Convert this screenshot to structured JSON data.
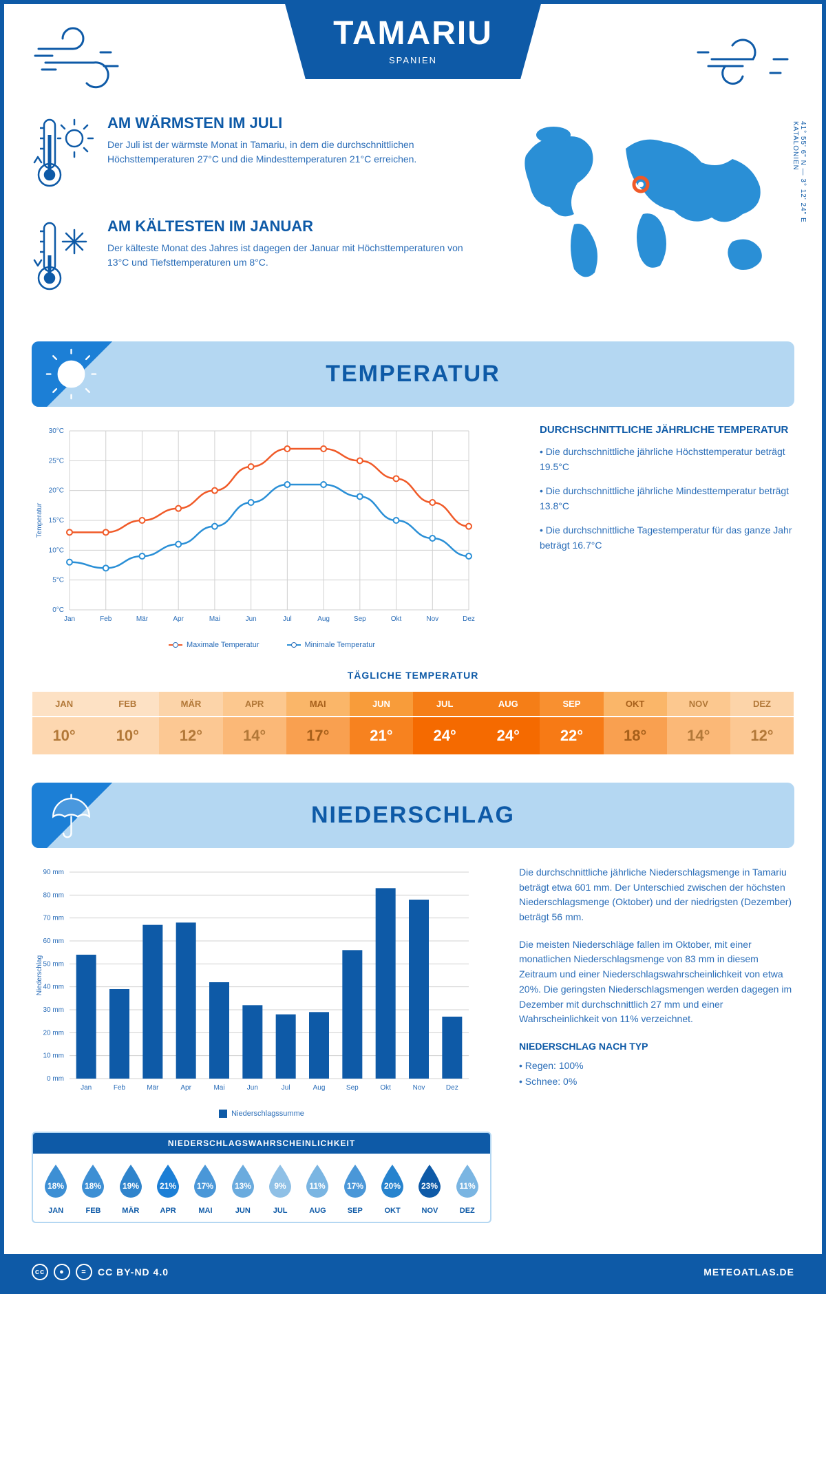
{
  "colors": {
    "primary": "#0e5aa7",
    "light_blue": "#b4d7f2",
    "mid_blue": "#1c7fd6",
    "text_blue": "#2a6db8",
    "orange_line": "#f05a28",
    "blue_line": "#2a8fd6",
    "grid": "#d0d0d0"
  },
  "header": {
    "title": "TAMARIU",
    "subtitle": "SPANIEN"
  },
  "coords": {
    "lat": "41° 55' 6\" N — 3° 12' 24\" E",
    "region": "KATALONIEN"
  },
  "intro": {
    "warm": {
      "title": "AM WÄRMSTEN IM JULI",
      "text": "Der Juli ist der wärmste Monat in Tamariu, in dem die durchschnittlichen Höchsttemperaturen 27°C und die Mindesttemperaturen 21°C erreichen."
    },
    "cold": {
      "title": "AM KÄLTESTEN IM JANUAR",
      "text": "Der kälteste Monat des Jahres ist dagegen der Januar mit Höchsttemperaturen von 13°C und Tiefsttemperaturen um 8°C."
    }
  },
  "sections": {
    "temp": "TEMPERATUR",
    "precip": "NIEDERSCHLAG"
  },
  "temp_chart": {
    "months": [
      "Jan",
      "Feb",
      "Mär",
      "Apr",
      "Mai",
      "Jun",
      "Jul",
      "Aug",
      "Sep",
      "Okt",
      "Nov",
      "Dez"
    ],
    "max": [
      13,
      13,
      15,
      17,
      20,
      24,
      27,
      27,
      25,
      22,
      18,
      14
    ],
    "min": [
      8,
      7,
      9,
      11,
      14,
      18,
      21,
      21,
      19,
      15,
      12,
      9
    ],
    "ylabel": "Temperatur",
    "ylim": [
      0,
      30
    ],
    "ystep": 5,
    "legend_max": "Maximale Temperatur",
    "legend_min": "Minimale Temperatur"
  },
  "temp_text": {
    "title": "DURCHSCHNITTLICHE JÄHRLICHE TEMPERATUR",
    "b1": "• Die durchschnittliche jährliche Höchsttemperatur beträgt 19.5°C",
    "b2": "• Die durchschnittliche jährliche Mindesttemperatur beträgt 13.8°C",
    "b3": "• Die durchschnittliche Tagestemperatur für das ganze Jahr beträgt 16.7°C"
  },
  "daily": {
    "title": "TÄGLICHE TEMPERATUR",
    "months": [
      "JAN",
      "FEB",
      "MÄR",
      "APR",
      "MAI",
      "JUN",
      "JUL",
      "AUG",
      "SEP",
      "OKT",
      "NOV",
      "DEZ"
    ],
    "values": [
      "10°",
      "10°",
      "12°",
      "14°",
      "17°",
      "21°",
      "24°",
      "24°",
      "22°",
      "18°",
      "14°",
      "12°"
    ],
    "head_colors": [
      "#fde1c4",
      "#fde1c4",
      "#fcd4a9",
      "#fcc88f",
      "#fab669",
      "#f89c3a",
      "#f57e17",
      "#f57e17",
      "#f89030",
      "#fab669",
      "#fcc88f",
      "#fcd4a9"
    ],
    "val_colors": [
      "#fdd7b0",
      "#fdd7b0",
      "#fcc893",
      "#fbb877",
      "#f9a050",
      "#f7821f",
      "#f56a00",
      "#f56a00",
      "#f77a15",
      "#f9a050",
      "#fbb877",
      "#fcc893"
    ],
    "text_colors": [
      "#b27838",
      "#b27838",
      "#b27838",
      "#b27838",
      "#a65f1a",
      "#ffffff",
      "#ffffff",
      "#ffffff",
      "#ffffff",
      "#a65f1a",
      "#b27838",
      "#b27838"
    ]
  },
  "precip_chart": {
    "months": [
      "Jan",
      "Feb",
      "Mär",
      "Apr",
      "Mai",
      "Jun",
      "Jul",
      "Aug",
      "Sep",
      "Okt",
      "Nov",
      "Dez"
    ],
    "values": [
      54,
      39,
      67,
      68,
      42,
      32,
      28,
      29,
      56,
      83,
      78,
      27
    ],
    "ylabel": "Niederschlag",
    "ylim": [
      0,
      90
    ],
    "ystep": 10,
    "legend": "Niederschlagssumme",
    "bar_color": "#0e5aa7"
  },
  "precip_text": {
    "p1": "Die durchschnittliche jährliche Niederschlagsmenge in Tamariu beträgt etwa 601 mm. Der Unterschied zwischen der höchsten Niederschlagsmenge (Oktober) und der niedrigsten (Dezember) beträgt 56 mm.",
    "p2": "Die meisten Niederschläge fallen im Oktober, mit einer monatlichen Niederschlagsmenge von 83 mm in diesem Zeitraum und einer Niederschlagswahrscheinlichkeit von etwa 20%. Die geringsten Niederschlagsmengen werden dagegen im Dezember mit durchschnittlich 27 mm und einer Wahrscheinlichkeit von 11% verzeichnet.",
    "type_title": "NIEDERSCHLAG NACH TYP",
    "type_rain": "• Regen: 100%",
    "type_snow": "• Schnee: 0%"
  },
  "prob": {
    "title": "NIEDERSCHLAGSWAHRSCHEINLICHKEIT",
    "months": [
      "JAN",
      "FEB",
      "MÄR",
      "APR",
      "MAI",
      "JUN",
      "JUL",
      "AUG",
      "SEP",
      "OKT",
      "NOV",
      "DEZ"
    ],
    "values": [
      "18%",
      "18%",
      "19%",
      "21%",
      "17%",
      "13%",
      "9%",
      "11%",
      "17%",
      "20%",
      "23%",
      "11%"
    ],
    "fill_colors": [
      "#3d8fd4",
      "#3d8fd4",
      "#2f84cc",
      "#1c7fd6",
      "#4a97d8",
      "#6aabde",
      "#8fc0e6",
      "#7ab5e2",
      "#4a97d8",
      "#2683ce",
      "#0e5aa7",
      "#7ab5e2"
    ]
  },
  "footer": {
    "license": "CC BY-ND 4.0",
    "site": "METEOATLAS.DE"
  }
}
